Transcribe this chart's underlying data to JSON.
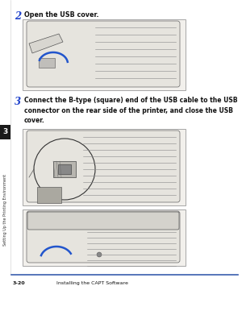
{
  "page_bg": "#ffffff",
  "step2_number": "2",
  "step2_text": "Open the USB cover.",
  "step3_number": "3",
  "step3_text": "Connect the B-type (square) end of the USB cable to the USB\nconnector on the rear side of the printer, and close the USB\ncover.",
  "side_tab_text": "Setting Up the Printing Environment",
  "side_tab_number": "3",
  "footer_left": "3-20",
  "footer_right": "Installing the CAPT Software",
  "footer_line_color": "#3a5dae",
  "side_tab_bg": "#1a1a1a",
  "side_tab_label_bg": "#1a1a1a",
  "step_number_color": "#2244cc",
  "body_text_color": "#111111",
  "step2_fontsize": 5.8,
  "step3_fontsize": 5.5,
  "step_num_fontsize": 8.5,
  "footer_fontsize": 4.5,
  "side_num_fontsize": 6.5,
  "side_text_fontsize": 3.5
}
